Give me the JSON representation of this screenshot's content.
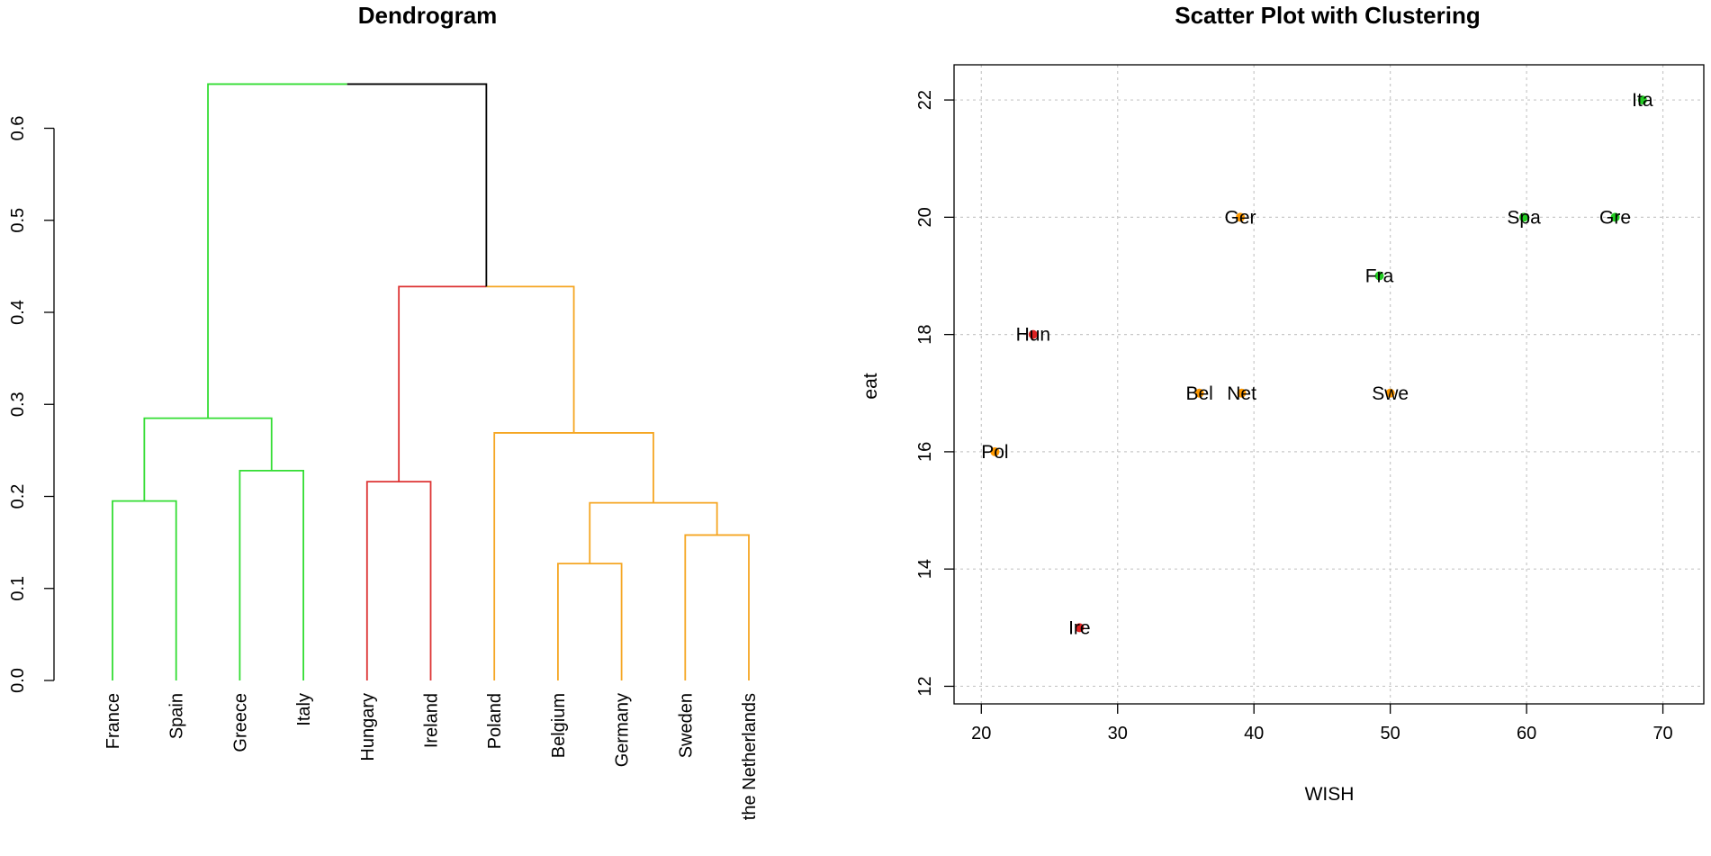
{
  "chart_data": [
    {
      "type": "dendrogram",
      "title": "Dendrogram",
      "ylim": [
        0,
        0.6
      ],
      "yticks": [
        0.0,
        0.1,
        0.2,
        0.3,
        0.4,
        0.5,
        0.6
      ],
      "ytick_labels": [
        "0.0",
        "0.1",
        "0.2",
        "0.3",
        "0.4",
        "0.5",
        "0.6"
      ],
      "leaves": [
        "France",
        "Spain",
        "Greece",
        "Italy",
        "Hungary",
        "Ireland",
        "Poland",
        "Belgium",
        "Germany",
        "Sweden",
        "the Netherlands"
      ],
      "merges": [
        {
          "id": "m1",
          "left": "France",
          "right": "Spain",
          "height": 0.195,
          "cluster": 1
        },
        {
          "id": "m2",
          "left": "Greece",
          "right": "Italy",
          "height": 0.228,
          "cluster": 1
        },
        {
          "id": "m3",
          "left": "m1",
          "right": "m2",
          "height": 0.285,
          "cluster": 1
        },
        {
          "id": "m4",
          "left": "Hungary",
          "right": "Ireland",
          "height": 0.216,
          "cluster": 2
        },
        {
          "id": "m5",
          "left": "Belgium",
          "right": "Germany",
          "height": 0.127,
          "cluster": 3
        },
        {
          "id": "m6",
          "left": "Sweden",
          "right": "the Netherlands",
          "height": 0.158,
          "cluster": 3
        },
        {
          "id": "m7",
          "left": "m5",
          "right": "m6",
          "height": 0.193,
          "cluster": 3
        },
        {
          "id": "m8",
          "left": "Poland",
          "right": "m7",
          "height": 0.269,
          "cluster": 3
        },
        {
          "id": "m9",
          "left": "m4",
          "right": "m8",
          "height": 0.428,
          "cluster": null
        },
        {
          "id": "m10",
          "left": "m3",
          "right": "m9",
          "height": 0.648,
          "cluster": null
        }
      ],
      "cluster_colors": {
        "1": "#33dd33",
        "2": "#dd3333",
        "3": "#f5a623",
        "none": "#000000"
      }
    },
    {
      "type": "scatter",
      "title": "Scatter Plot with Clustering",
      "xlabel": "WISH",
      "ylabel": "eat",
      "xlim": [
        18,
        73
      ],
      "ylim": [
        11.7,
        22.6
      ],
      "xticks": [
        20,
        30,
        40,
        50,
        60,
        70
      ],
      "yticks": [
        12,
        14,
        16,
        18,
        20,
        22
      ],
      "grid": true,
      "points": [
        {
          "label": "Ita",
          "x": 68.5,
          "y": 22.0,
          "cluster": 1
        },
        {
          "label": "Spa",
          "x": 59.8,
          "y": 20.0,
          "cluster": 1
        },
        {
          "label": "Gre",
          "x": 66.5,
          "y": 20.0,
          "cluster": 1
        },
        {
          "label": "Fra",
          "x": 49.2,
          "y": 19.0,
          "cluster": 1
        },
        {
          "label": "Ger",
          "x": 39.0,
          "y": 20.0,
          "cluster": 3
        },
        {
          "label": "Hun",
          "x": 23.8,
          "y": 18.0,
          "cluster": 2
        },
        {
          "label": "Bel",
          "x": 36.0,
          "y": 17.0,
          "cluster": 3
        },
        {
          "label": "Net",
          "x": 39.1,
          "y": 17.0,
          "cluster": 3
        },
        {
          "label": "Swe",
          "x": 50.0,
          "y": 17.0,
          "cluster": 3
        },
        {
          "label": "Pol",
          "x": 21.0,
          "y": 16.0,
          "cluster": 3
        },
        {
          "label": "Ire",
          "x": 27.2,
          "y": 13.0,
          "cluster": 2
        }
      ],
      "cluster_colors": {
        "1": "#22cc22",
        "2": "#dd2222",
        "3": "#ff9900"
      }
    }
  ]
}
